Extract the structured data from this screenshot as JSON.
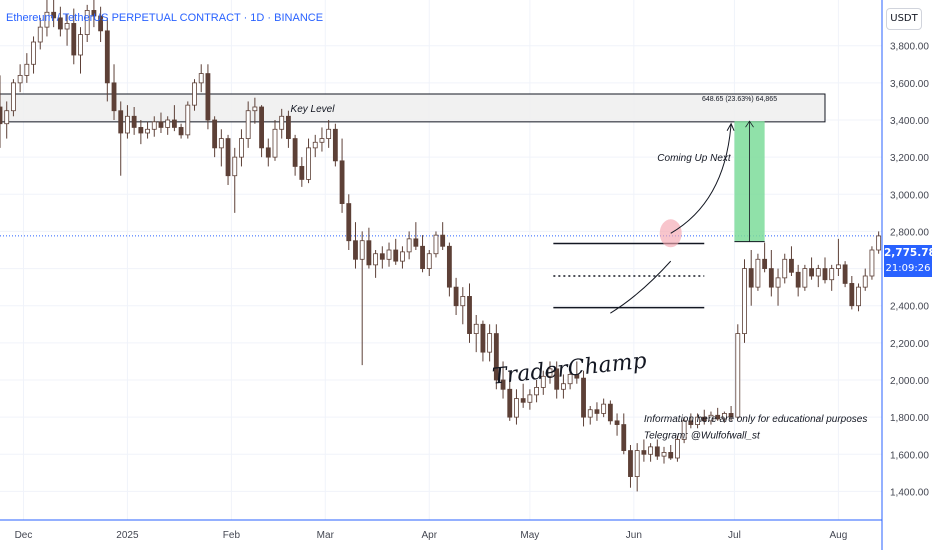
{
  "title": "Ethereum / TetherUS PERPETUAL CONTRACT · 1D · BINANCE",
  "currency": "USDT",
  "last_price": "2,775.78",
  "countdown": "21:09:26",
  "colors": {
    "accent": "#2962ff",
    "candle": "#5d4037",
    "key_zone_fill": "#eeeeee",
    "target_fill": "#7ddc9a",
    "highlight": "#f4a6b0",
    "axis_text": "#131722",
    "axis_label_text": "#434651"
  },
  "chart_data": {
    "type": "candlestick",
    "symbol": "ETHUSDT.P",
    "interval": "1D",
    "ylim": [
      1300,
      4100
    ],
    "y_ticks": [
      1400,
      1600,
      1800,
      2000,
      2200,
      2400,
      2600,
      2800,
      3000,
      3200,
      3400,
      3600,
      3800
    ],
    "y_tick_labels": [
      "1,400.00",
      "1,600.00",
      "1,800.00",
      "2,000.00",
      "2,200.00",
      "2,400.00",
      "2,600.00",
      "2,800.00",
      "3,000.00",
      "3,200.00",
      "3,400.00",
      "3,600.00",
      "3,800.00"
    ],
    "x_ticks": [
      {
        "label": "Dec",
        "date": "2024-12-01"
      },
      {
        "label": "2025",
        "date": "2025-01-01"
      },
      {
        "label": "Feb",
        "date": "2025-02-01"
      },
      {
        "label": "Mar",
        "date": "2025-03-01"
      },
      {
        "label": "Apr",
        "date": "2025-04-01"
      },
      {
        "label": "May",
        "date": "2025-05-01"
      },
      {
        "label": "Jun",
        "date": "2025-06-01"
      },
      {
        "label": "Jul",
        "date": "2025-07-01"
      },
      {
        "label": "Aug",
        "date": "2025-08-01"
      }
    ],
    "x_range": [
      "2024-11-24",
      "2025-08-14"
    ],
    "current_price": 2775.78,
    "key_level_zone": {
      "label": "Key Level",
      "low": 3390,
      "high": 3540,
      "start": "2024-11-24",
      "end": "2025-07-28"
    },
    "measure": {
      "label": "648.65 (23.63%) 64,865",
      "from_price": 2745,
      "to_price": 3393.65,
      "start": "2025-07-01",
      "end": "2025-07-10"
    },
    "range_lines": [
      {
        "role": "top",
        "price": 2735,
        "start": "2025-05-08",
        "end": "2025-06-22"
      },
      {
        "role": "mid",
        "price": 2560,
        "start": "2025-05-08",
        "end": "2025-06-22"
      },
      {
        "role": "bottom",
        "price": 2390,
        "start": "2025-05-08",
        "end": "2025-06-22"
      }
    ],
    "annotations": [
      {
        "text": "Key Level"
      },
      {
        "text": "Coming Up Next"
      },
      {
        "text": "TraderChamp"
      },
      {
        "text": "Information here are only for educational purposes"
      },
      {
        "text": "Telegram: @Wulfofwall_st"
      }
    ],
    "candles": [
      [
        3470,
        3640,
        3250,
        3380
      ],
      [
        3380,
        3500,
        3300,
        3450
      ],
      [
        3450,
        3620,
        3420,
        3600
      ],
      [
        3600,
        3700,
        3550,
        3640
      ],
      [
        3640,
        3760,
        3600,
        3700
      ],
      [
        3700,
        3850,
        3650,
        3820
      ],
      [
        3820,
        3950,
        3780,
        3900
      ],
      [
        3900,
        4050,
        3850,
        3980
      ],
      [
        3980,
        4070,
        3900,
        3950
      ],
      [
        3950,
        4010,
        3850,
        3890
      ],
      [
        3890,
        3970,
        3800,
        3920
      ],
      [
        3920,
        4000,
        3700,
        3750
      ],
      [
        3750,
        3900,
        3650,
        3860
      ],
      [
        3860,
        4020,
        3820,
        3990
      ],
      [
        3990,
        4080,
        3900,
        3960
      ],
      [
        3960,
        4010,
        3820,
        3880
      ],
      [
        3880,
        3950,
        3500,
        3600
      ],
      [
        3600,
        3700,
        3400,
        3450
      ],
      [
        3450,
        3500,
        3100,
        3330
      ],
      [
        3330,
        3480,
        3300,
        3420
      ],
      [
        3420,
        3470,
        3320,
        3360
      ],
      [
        3360,
        3400,
        3270,
        3330
      ],
      [
        3330,
        3390,
        3300,
        3350
      ],
      [
        3350,
        3420,
        3310,
        3390
      ],
      [
        3390,
        3440,
        3330,
        3360
      ],
      [
        3360,
        3420,
        3320,
        3400
      ],
      [
        3400,
        3480,
        3340,
        3360
      ],
      [
        3360,
        3380,
        3300,
        3320
      ],
      [
        3320,
        3500,
        3300,
        3480
      ],
      [
        3480,
        3620,
        3450,
        3600
      ],
      [
        3600,
        3700,
        3550,
        3650
      ],
      [
        3650,
        3700,
        3350,
        3400
      ],
      [
        3400,
        3420,
        3200,
        3250
      ],
      [
        3250,
        3350,
        3150,
        3300
      ],
      [
        3300,
        3320,
        3050,
        3100
      ],
      [
        3100,
        3250,
        2900,
        3200
      ],
      [
        3200,
        3350,
        3150,
        3300
      ],
      [
        3300,
        3500,
        3250,
        3450
      ],
      [
        3450,
        3520,
        3380,
        3470
      ],
      [
        3470,
        3480,
        3200,
        3250
      ],
      [
        3250,
        3300,
        3150,
        3200
      ],
      [
        3200,
        3400,
        3180,
        3350
      ],
      [
        3350,
        3460,
        3300,
        3420
      ],
      [
        3420,
        3450,
        3250,
        3300
      ],
      [
        3300,
        3320,
        3100,
        3150
      ],
      [
        3150,
        3200,
        3040,
        3080
      ],
      [
        3080,
        3300,
        3060,
        3250
      ],
      [
        3250,
        3320,
        3200,
        3280
      ],
      [
        3280,
        3360,
        3230,
        3300
      ],
      [
        3300,
        3400,
        3250,
        3350
      ],
      [
        3350,
        3380,
        3150,
        3180
      ],
      [
        3180,
        3300,
        2900,
        2950
      ],
      [
        2950,
        3000,
        2700,
        2750
      ],
      [
        2750,
        2850,
        2600,
        2650
      ],
      [
        2650,
        2800,
        2080,
        2750
      ],
      [
        2750,
        2820,
        2600,
        2620
      ],
      [
        2620,
        2700,
        2550,
        2680
      ],
      [
        2680,
        2720,
        2600,
        2650
      ],
      [
        2650,
        2740,
        2610,
        2700
      ],
      [
        2700,
        2760,
        2620,
        2640
      ],
      [
        2640,
        2720,
        2600,
        2690
      ],
      [
        2690,
        2800,
        2650,
        2760
      ],
      [
        2760,
        2850,
        2700,
        2720
      ],
      [
        2720,
        2780,
        2580,
        2600
      ],
      [
        2600,
        2700,
        2560,
        2680
      ],
      [
        2680,
        2800,
        2660,
        2780
      ],
      [
        2780,
        2850,
        2700,
        2720
      ],
      [
        2720,
        2740,
        2450,
        2500
      ],
      [
        2500,
        2550,
        2350,
        2400
      ],
      [
        2400,
        2500,
        2300,
        2450
      ],
      [
        2450,
        2520,
        2200,
        2250
      ],
      [
        2250,
        2350,
        2150,
        2300
      ],
      [
        2300,
        2320,
        2100,
        2150
      ],
      [
        2150,
        2300,
        2100,
        2250
      ],
      [
        2250,
        2300,
        1950,
        2000
      ],
      [
        2000,
        2100,
        1900,
        1950
      ],
      [
        1950,
        2050,
        1780,
        1800
      ],
      [
        1800,
        1950,
        1760,
        1900
      ],
      [
        1900,
        1980,
        1850,
        1880
      ],
      [
        1880,
        1950,
        1840,
        1920
      ],
      [
        1920,
        2000,
        1880,
        1960
      ],
      [
        1960,
        2050,
        1920,
        2020
      ],
      [
        2020,
        2100,
        1980,
        2060
      ],
      [
        2060,
        2100,
        1900,
        1950
      ],
      [
        1950,
        2030,
        1900,
        1980
      ],
      [
        1980,
        2060,
        1950,
        2030
      ],
      [
        2030,
        2100,
        1980,
        2010
      ],
      [
        2010,
        2050,
        1750,
        1800
      ],
      [
        1800,
        1860,
        1760,
        1840
      ],
      [
        1840,
        1880,
        1780,
        1820
      ],
      [
        1820,
        1900,
        1800,
        1870
      ],
      [
        1870,
        1890,
        1760,
        1780
      ],
      [
        1780,
        1820,
        1700,
        1760
      ],
      [
        1760,
        1820,
        1600,
        1620
      ],
      [
        1620,
        1650,
        1420,
        1480
      ],
      [
        1480,
        1660,
        1400,
        1620
      ],
      [
        1620,
        1680,
        1560,
        1600
      ],
      [
        1600,
        1660,
        1560,
        1640
      ],
      [
        1640,
        1680,
        1570,
        1590
      ],
      [
        1590,
        1640,
        1550,
        1610
      ],
      [
        1610,
        1650,
        1570,
        1580
      ],
      [
        1580,
        1700,
        1560,
        1680
      ],
      [
        1680,
        1800,
        1660,
        1780
      ],
      [
        1780,
        1820,
        1740,
        1760
      ],
      [
        1760,
        1820,
        1740,
        1800
      ],
      [
        1800,
        1840,
        1760,
        1780
      ],
      [
        1780,
        1830,
        1760,
        1810
      ],
      [
        1810,
        1850,
        1780,
        1790
      ],
      [
        1790,
        1830,
        1770,
        1820
      ],
      [
        1820,
        1860,
        1780,
        1800
      ],
      [
        1800,
        2300,
        1790,
        2250
      ],
      [
        2250,
        2650,
        2200,
        2600
      ],
      [
        2600,
        2700,
        2400,
        2500
      ],
      [
        2500,
        2680,
        2480,
        2650
      ],
      [
        2650,
        2740,
        2580,
        2600
      ],
      [
        2600,
        2700,
        2450,
        2500
      ],
      [
        2500,
        2600,
        2400,
        2550
      ],
      [
        2550,
        2680,
        2520,
        2650
      ],
      [
        2650,
        2720,
        2560,
        2580
      ],
      [
        2580,
        2620,
        2450,
        2500
      ],
      [
        2500,
        2620,
        2480,
        2600
      ],
      [
        2600,
        2660,
        2540,
        2560
      ],
      [
        2560,
        2620,
        2500,
        2600
      ],
      [
        2600,
        2660,
        2520,
        2540
      ],
      [
        2540,
        2620,
        2480,
        2600
      ],
      [
        2600,
        2760,
        2560,
        2620
      ],
      [
        2620,
        2640,
        2500,
        2520
      ],
      [
        2520,
        2560,
        2380,
        2400
      ],
      [
        2400,
        2520,
        2370,
        2500
      ],
      [
        2500,
        2600,
        2480,
        2560
      ],
      [
        2560,
        2720,
        2540,
        2700
      ],
      [
        2700,
        2800,
        2680,
        2775.78
      ]
    ],
    "candle_start_date": "2024-11-24",
    "candle_step_days": 2
  }
}
